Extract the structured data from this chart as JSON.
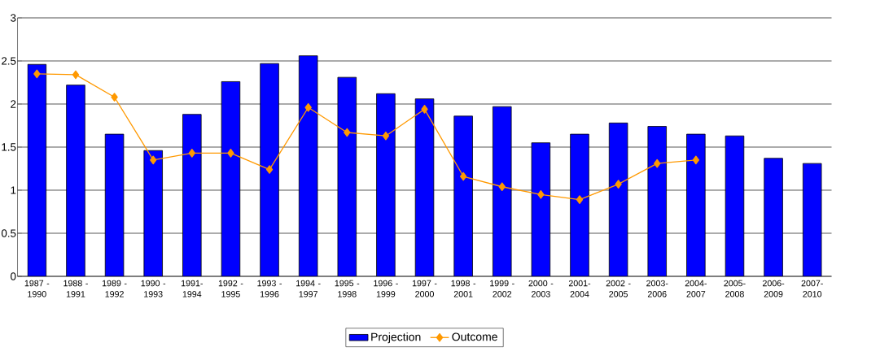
{
  "chart_data": {
    "type": "bar",
    "categories": [
      "1987 - 1990",
      "1988 - 1991",
      "1989 - 1992",
      "1990 - 1993",
      "1991- 1994",
      "1992 - 1995",
      "1993 - 1996",
      "1994 - 1997",
      "1995 - 1998",
      "1996 - 1999",
      "1997 - 2000",
      "1998 - 2001",
      "1999 - 2002",
      "2000 - 2003",
      "2001- 2004",
      "2002 - 2005",
      "2003- 2006",
      "2004- 2007",
      "2005- 2008",
      "2006- 2009",
      "2007- 2010"
    ],
    "series": [
      {
        "name": "Projection",
        "color": "#0000ff",
        "values": [
          2.46,
          2.22,
          1.65,
          1.46,
          1.88,
          2.26,
          2.47,
          2.56,
          2.31,
          2.12,
          2.06,
          1.86,
          1.97,
          1.55,
          1.65,
          1.78,
          1.74,
          1.65,
          1.63,
          1.37,
          1.31
        ]
      },
      {
        "name": "Outcome",
        "type": "line",
        "color": "#ff9900",
        "marker": "diamond",
        "values": [
          2.35,
          2.34,
          2.08,
          1.35,
          1.43,
          1.43,
          1.24,
          1.96,
          1.67,
          1.63,
          1.94,
          1.16,
          1.04,
          0.95,
          0.89,
          1.07,
          1.31,
          1.35,
          null,
          null,
          null
        ]
      }
    ],
    "ylim": [
      0,
      3
    ],
    "yticks": [
      0,
      0.5,
      1,
      1.5,
      2,
      2.5,
      3
    ],
    "grid": "y",
    "legend": "bottom"
  }
}
